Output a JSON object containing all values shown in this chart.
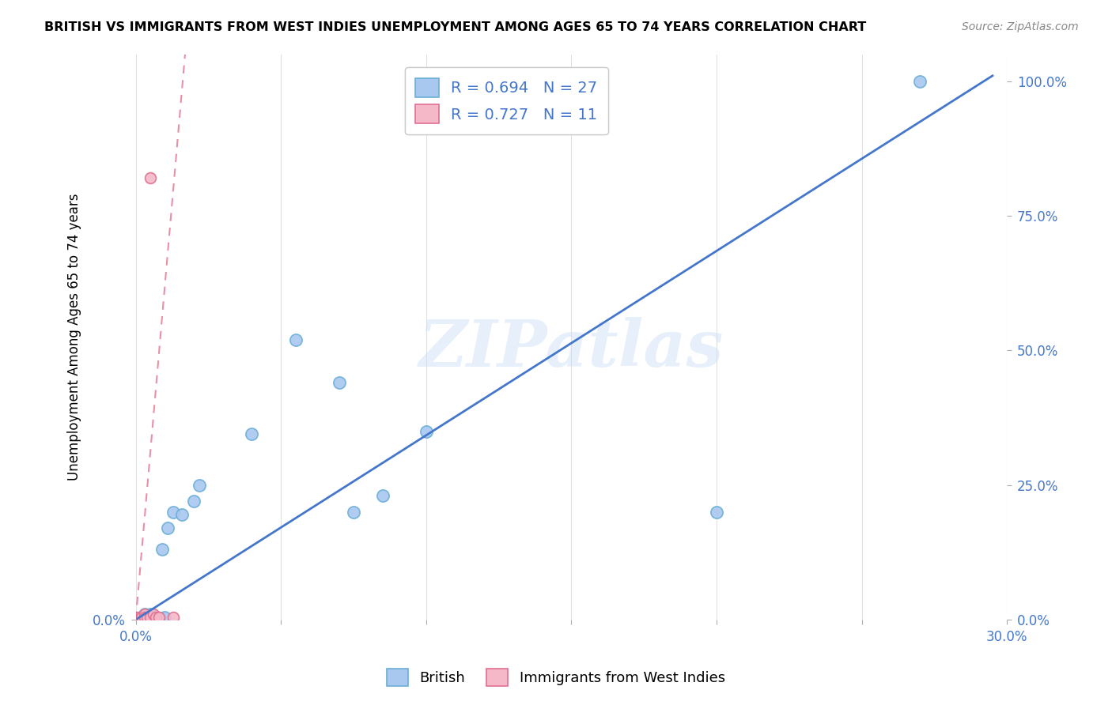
{
  "title": "BRITISH VS IMMIGRANTS FROM WEST INDIES UNEMPLOYMENT AMONG AGES 65 TO 74 YEARS CORRELATION CHART",
  "source": "Source: ZipAtlas.com",
  "ylabel": "Unemployment Among Ages 65 to 74 years",
  "xlim": [
    0.0,
    0.3
  ],
  "ylim": [
    0.0,
    1.05
  ],
  "xticks": [
    0.0,
    0.05,
    0.1,
    0.15,
    0.2,
    0.25,
    0.3
  ],
  "yticks": [
    0.0,
    0.25,
    0.5,
    0.75,
    1.0
  ],
  "right_ytick_labels": [
    "0.0%",
    "25.0%",
    "50.0%",
    "75.0%",
    "100.0%"
  ],
  "british_color": "#a8c8f0",
  "british_edge_color": "#6baed6",
  "west_indies_color": "#f4b8c8",
  "west_indies_edge_color": "#e07090",
  "line_blue_color": "#4477cc",
  "line_pink_color": "#e06080",
  "watermark_text": "ZIPatlas",
  "legend_R_british": "R = 0.694",
  "legend_N_british": "N = 27",
  "legend_R_west_indies": "R = 0.727",
  "legend_N_west_indies": "N = 11",
  "british_x": [
    0.001,
    0.002,
    0.002,
    0.003,
    0.003,
    0.004,
    0.004,
    0.005,
    0.005,
    0.006,
    0.007,
    0.008,
    0.009,
    0.01,
    0.011,
    0.013,
    0.016,
    0.02,
    0.022,
    0.04,
    0.055,
    0.07,
    0.075,
    0.085,
    0.1,
    0.2,
    0.27
  ],
  "british_y": [
    0.003,
    0.005,
    0.003,
    0.003,
    0.01,
    0.005,
    0.003,
    0.01,
    0.003,
    0.005,
    0.003,
    0.003,
    0.13,
    0.005,
    0.17,
    0.2,
    0.195,
    0.22,
    0.25,
    0.345,
    0.52,
    0.44,
    0.2,
    0.23,
    0.35,
    0.2,
    1.0
  ],
  "west_indies_x": [
    0.001,
    0.002,
    0.003,
    0.003,
    0.004,
    0.005,
    0.005,
    0.006,
    0.007,
    0.008,
    0.013
  ],
  "west_indies_y": [
    0.005,
    0.005,
    0.01,
    0.005,
    0.005,
    0.005,
    0.82,
    0.01,
    0.005,
    0.005,
    0.005
  ],
  "blue_line_x": [
    0.0,
    0.295
  ],
  "blue_line_y": [
    0.0,
    1.01
  ],
  "pink_line_x": [
    0.0,
    0.017
  ],
  "pink_line_y": [
    0.0,
    1.05
  ],
  "background_color": "#ffffff",
  "grid_color": "#e0e0e0"
}
